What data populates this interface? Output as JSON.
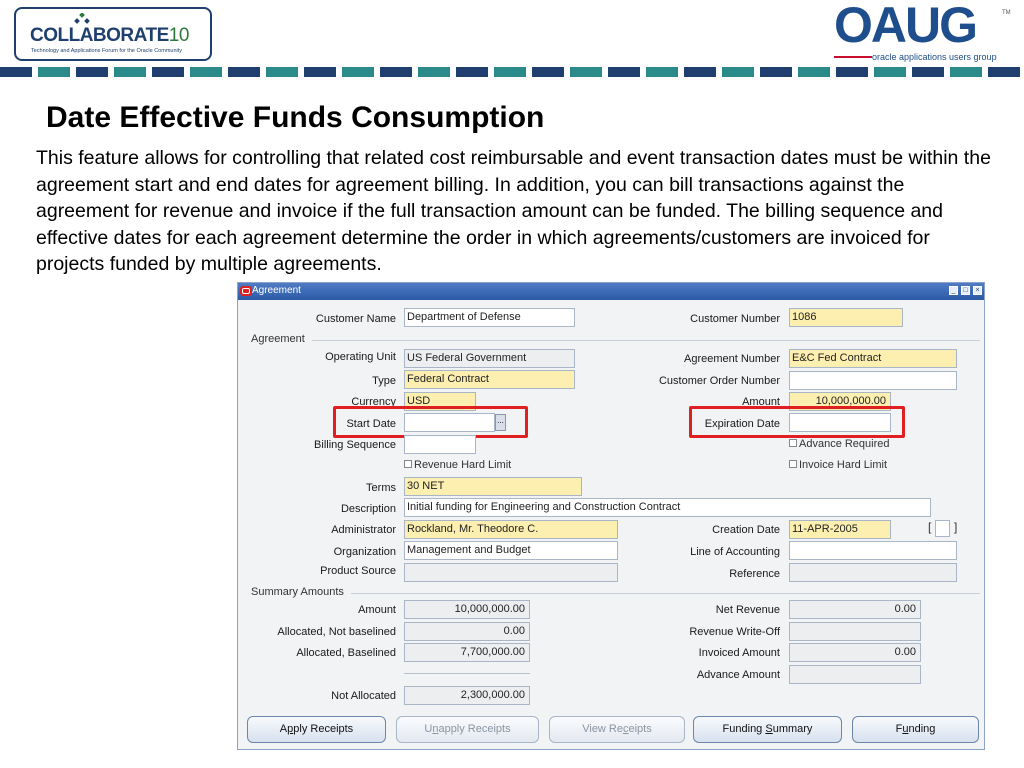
{
  "header": {
    "collab_logo": {
      "word": "COLLABORATE",
      "number": "10",
      "tagline": "Technology and Applications Forum for the Oracle Community"
    },
    "oaug_logo": {
      "word": "OAUG",
      "tm": "TM",
      "tagline": "oracle applications users group"
    },
    "stripe_colors": [
      "#1f3f6e",
      "#2b8a8a"
    ]
  },
  "slide": {
    "title": "Date Effective Funds Consumption",
    "body": "This feature allows for controlling that related cost reimbursable and event transaction dates must be within the agreement start and end dates for agreement billing. In addition, you can bill transactions against the agreement for revenue and invoice if the full transaction amount can be funded. The billing sequence and effective dates for each agreement determine the order in which agreements/customers are invoiced for projects funded by multiple agreements."
  },
  "window": {
    "title": "Agreement",
    "controls": {
      "minimize": "_",
      "maximize": "□",
      "close": "×"
    },
    "customer_name": {
      "label": "Customer Name",
      "value": "Department of Defense"
    },
    "customer_number": {
      "label": "Customer Number",
      "value": "1086"
    },
    "agreement_section": "Agreement",
    "operating_unit": {
      "label": "Operating Unit",
      "value": "US Federal Government"
    },
    "agreement_number": {
      "label": "Agreement Number",
      "value": "E&C Fed Contract"
    },
    "type": {
      "label": "Type",
      "value": "Federal Contract"
    },
    "customer_order_number": {
      "label": "Customer Order Number",
      "value": ""
    },
    "currency": {
      "label": "Currency",
      "value": "USD"
    },
    "amount": {
      "label": "Amount",
      "value": "10,000,000.00"
    },
    "start_date": {
      "label": "Start Date",
      "value": "",
      "lov": "..."
    },
    "expiration_date": {
      "label": "Expiration Date",
      "value": ""
    },
    "billing_sequence": {
      "label": "Billing Sequence",
      "value": ""
    },
    "advance_required": {
      "label": "Advance Required"
    },
    "revenue_hard_limit": {
      "label": "Revenue Hard Limit"
    },
    "invoice_hard_limit": {
      "label": "Invoice Hard Limit"
    },
    "terms": {
      "label": "Terms",
      "value": "30 NET"
    },
    "description": {
      "label": "Description",
      "value": "Initial funding for Engineering and Construction Contract"
    },
    "administrator": {
      "label": "Administrator",
      "value": "Rockland, Mr. Theodore C."
    },
    "creation_date": {
      "label": "Creation Date",
      "value": "11-APR-2005"
    },
    "organization": {
      "label": "Organization",
      "value": "Management and Budget"
    },
    "line_of_accounting": {
      "label": "Line of Accounting",
      "value": ""
    },
    "product_source": {
      "label": "Product Source",
      "value": ""
    },
    "reference": {
      "label": "Reference",
      "value": ""
    },
    "flex_left": "[",
    "flex_right": "]",
    "summary_section": "Summary Amounts",
    "summary_amount": {
      "label": "Amount",
      "value": "10,000,000.00"
    },
    "allocated_not_baselined": {
      "label": "Allocated, Not baselined",
      "value": "0.00"
    },
    "allocated_baselined": {
      "label": "Allocated, Baselined",
      "value": "7,700,000.00"
    },
    "not_allocated": {
      "label": "Not Allocated",
      "value": "2,300,000.00"
    },
    "net_revenue": {
      "label": "Net Revenue",
      "value": "0.00"
    },
    "revenue_write_off": {
      "label": "Revenue Write-Off",
      "value": ""
    },
    "invoiced_amount": {
      "label": "Invoiced Amount",
      "value": "0.00"
    },
    "advance_amount": {
      "label": "Advance Amount",
      "value": ""
    },
    "buttons": {
      "apply_receipts": {
        "pre": "A",
        "u": "p",
        "post": "ply Receipts"
      },
      "unapply_receipts": {
        "pre": "U",
        "u": "n",
        "post": "apply Receipts"
      },
      "view_receipts": {
        "pre": "View Re",
        "u": "c",
        "post": "eipts"
      },
      "funding_summary": {
        "pre": "Funding ",
        "u": "S",
        "post": "ummary"
      },
      "funding": {
        "pre": "F",
        "u": "u",
        "post": "nding"
      }
    }
  }
}
